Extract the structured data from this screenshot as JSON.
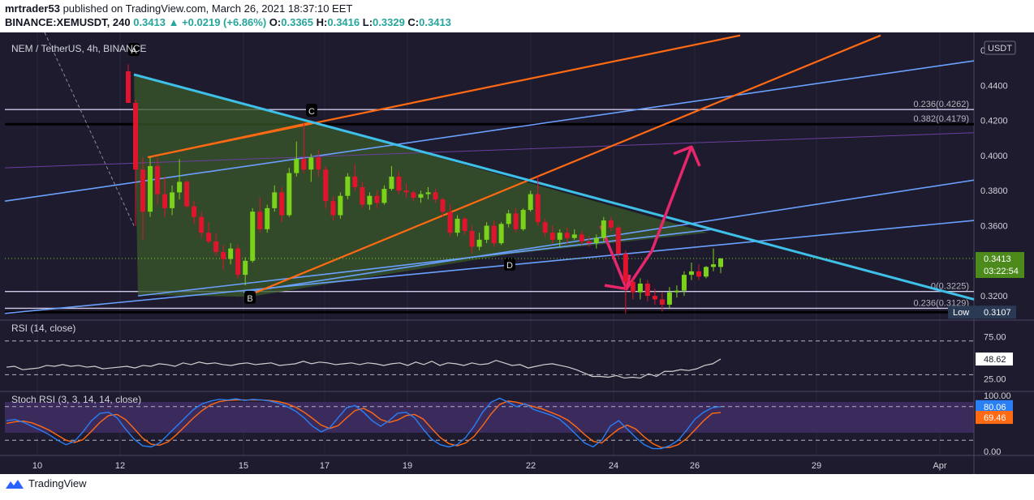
{
  "header": {
    "author": "mrtrader53",
    "published_text": "published on TradingView.com, March 26, 2021 18:37:10 EET",
    "symbol": "BINANCE:XEMUSDT, 240",
    "last": "0.3413",
    "change": "▲ +0.0219 (+6.86%)",
    "o_label": "O:",
    "o": "0.3365",
    "h_label": "H:",
    "h": "0.3416",
    "l_label": "L:",
    "l": "0.3329",
    "c_label": "C:",
    "c": "0.3413"
  },
  "footer": {
    "brand": "TradingView"
  },
  "colors": {
    "background": "#1e1b2e",
    "up": "#7bd21a",
    "down": "#e0152d",
    "trendline": "#3fc0e8",
    "channel": "#6aa0ff",
    "orange": "#ff6a13",
    "arrow": "#e8266a",
    "triangle_fill": "#3a5a2a",
    "rsi": "#d0d0d0",
    "stoch_k": "#2a7ff5",
    "stoch_d": "#ff6a13"
  },
  "icons": {
    "logo": "tradingview-logo-icon"
  },
  "chart_data": {
    "type": "candlestick",
    "title": "NEM / TetherUS, 4h, BINANCE",
    "currency_badge": "USDT",
    "y_ticks": [
      "0.4400",
      "0.4200",
      "0.4000",
      "0.3800",
      "0.3600",
      "0.3200"
    ],
    "y_top_partial": "0.4600",
    "ylim": [
      0.3085,
      0.4665
    ],
    "x_ticks": [
      "10",
      "12",
      "15",
      "17",
      "19",
      "22",
      "24",
      "26",
      "29",
      "Apr"
    ],
    "price_label": "0.3413",
    "countdown": "03:22:54",
    "low_label": "Low",
    "low_value": "0.3107",
    "fib_labels": [
      "0.236(0.4262)",
      "0.382(0.4179)",
      "0(0.3225)",
      "0.236(0.3129)"
    ],
    "fib_levels": [
      0.4262,
      0.4179,
      0.3225,
      0.3129,
      0.3107
    ],
    "pattern_points": [
      "A",
      "B",
      "C",
      "D"
    ],
    "candles": [
      [
        0.448,
        0.452,
        0.43,
        0.43
      ],
      [
        0.43,
        0.432,
        0.36,
        0.392
      ],
      [
        0.392,
        0.399,
        0.352,
        0.368
      ],
      [
        0.368,
        0.399,
        0.365,
        0.394
      ],
      [
        0.394,
        0.399,
        0.372,
        0.378
      ],
      [
        0.378,
        0.388,
        0.365,
        0.37
      ],
      [
        0.37,
        0.383,
        0.366,
        0.379
      ],
      [
        0.379,
        0.398,
        0.375,
        0.385
      ],
      [
        0.385,
        0.386,
        0.37,
        0.371
      ],
      [
        0.371,
        0.374,
        0.361,
        0.365
      ],
      [
        0.365,
        0.368,
        0.353,
        0.356
      ],
      [
        0.356,
        0.362,
        0.35,
        0.351
      ],
      [
        0.351,
        0.356,
        0.343,
        0.345
      ],
      [
        0.345,
        0.349,
        0.335,
        0.341
      ],
      [
        0.341,
        0.35,
        0.338,
        0.347
      ],
      [
        0.347,
        0.349,
        0.33,
        0.332
      ],
      [
        0.332,
        0.342,
        0.326,
        0.34
      ],
      [
        0.34,
        0.37,
        0.339,
        0.368
      ],
      [
        0.368,
        0.376,
        0.356,
        0.358
      ],
      [
        0.358,
        0.372,
        0.356,
        0.37
      ],
      [
        0.37,
        0.383,
        0.368,
        0.379
      ],
      [
        0.379,
        0.382,
        0.362,
        0.366
      ],
      [
        0.366,
        0.393,
        0.365,
        0.39
      ],
      [
        0.39,
        0.408,
        0.388,
        0.398
      ],
      [
        0.398,
        0.419,
        0.39,
        0.392
      ],
      [
        0.392,
        0.401,
        0.385,
        0.399
      ],
      [
        0.399,
        0.403,
        0.388,
        0.392
      ],
      [
        0.392,
        0.394,
        0.37,
        0.374
      ],
      [
        0.374,
        0.377,
        0.363,
        0.366
      ],
      [
        0.366,
        0.379,
        0.364,
        0.377
      ],
      [
        0.377,
        0.39,
        0.375,
        0.388
      ],
      [
        0.388,
        0.395,
        0.38,
        0.382
      ],
      [
        0.382,
        0.385,
        0.37,
        0.372
      ],
      [
        0.372,
        0.379,
        0.369,
        0.377
      ],
      [
        0.377,
        0.38,
        0.37,
        0.373
      ],
      [
        0.373,
        0.383,
        0.372,
        0.381
      ],
      [
        0.381,
        0.394,
        0.38,
        0.388
      ],
      [
        0.388,
        0.391,
        0.378,
        0.38
      ],
      [
        0.38,
        0.384,
        0.376,
        0.379
      ],
      [
        0.379,
        0.38,
        0.374,
        0.376
      ],
      [
        0.376,
        0.38,
        0.373,
        0.378
      ],
      [
        0.378,
        0.382,
        0.375,
        0.379
      ],
      [
        0.379,
        0.381,
        0.373,
        0.375
      ],
      [
        0.375,
        0.376,
        0.365,
        0.368
      ],
      [
        0.368,
        0.372,
        0.354,
        0.356
      ],
      [
        0.356,
        0.366,
        0.354,
        0.364
      ],
      [
        0.364,
        0.365,
        0.355,
        0.357
      ],
      [
        0.357,
        0.36,
        0.344,
        0.348
      ],
      [
        0.348,
        0.356,
        0.346,
        0.352
      ],
      [
        0.352,
        0.362,
        0.35,
        0.36
      ],
      [
        0.36,
        0.363,
        0.348,
        0.35
      ],
      [
        0.35,
        0.362,
        0.349,
        0.361
      ],
      [
        0.361,
        0.369,
        0.359,
        0.367
      ],
      [
        0.367,
        0.37,
        0.356,
        0.358
      ],
      [
        0.358,
        0.37,
        0.357,
        0.369
      ],
      [
        0.369,
        0.38,
        0.368,
        0.378
      ],
      [
        0.378,
        0.388,
        0.36,
        0.362
      ],
      [
        0.362,
        0.364,
        0.354,
        0.356
      ],
      [
        0.356,
        0.36,
        0.35,
        0.352
      ],
      [
        0.352,
        0.358,
        0.348,
        0.356
      ],
      [
        0.356,
        0.359,
        0.35,
        0.353
      ],
      [
        0.353,
        0.358,
        0.352,
        0.355
      ],
      [
        0.355,
        0.357,
        0.349,
        0.351
      ],
      [
        0.351,
        0.354,
        0.348,
        0.35
      ],
      [
        0.35,
        0.355,
        0.347,
        0.353
      ],
      [
        0.353,
        0.365,
        0.351,
        0.363
      ],
      [
        0.363,
        0.365,
        0.357,
        0.359
      ],
      [
        0.359,
        0.36,
        0.342,
        0.344
      ],
      [
        0.344,
        0.346,
        0.31,
        0.328
      ],
      [
        0.328,
        0.33,
        0.318,
        0.322
      ],
      [
        0.322,
        0.33,
        0.318,
        0.327
      ],
      [
        0.327,
        0.329,
        0.317,
        0.32
      ],
      [
        0.32,
        0.324,
        0.315,
        0.318
      ],
      [
        0.318,
        0.322,
        0.311,
        0.315
      ],
      [
        0.315,
        0.325,
        0.313,
        0.322
      ],
      [
        0.322,
        0.326,
        0.319,
        0.323
      ],
      [
        0.323,
        0.334,
        0.32,
        0.332
      ],
      [
        0.332,
        0.339,
        0.329,
        0.334
      ],
      [
        0.334,
        0.338,
        0.329,
        0.331
      ],
      [
        0.331,
        0.337,
        0.33,
        0.3365
      ],
      [
        0.3365,
        0.347,
        0.334,
        0.338
      ],
      [
        0.3365,
        0.3416,
        0.3329,
        0.3413
      ]
    ],
    "rsi": {
      "label": "RSI (14, close)",
      "value_label": "48.62",
      "ticks": [
        "75.00",
        "25.00"
      ],
      "values": [
        39,
        40,
        36,
        37,
        38,
        41,
        40,
        42,
        40,
        41,
        39,
        40,
        37,
        38,
        39,
        40,
        38,
        41,
        40,
        43,
        42,
        40,
        44,
        42,
        45,
        43,
        44,
        42,
        41,
        43,
        44,
        42,
        43,
        44,
        41,
        42,
        43,
        46,
        43,
        45,
        44,
        42,
        43,
        44,
        42,
        44,
        43,
        41,
        43,
        44,
        41,
        45,
        42,
        46,
        41,
        44,
        43,
        41,
        44,
        42,
        43,
        47,
        44,
        41,
        42,
        38,
        40,
        42,
        43,
        41,
        39,
        36,
        32,
        28,
        28,
        27,
        29,
        26,
        27,
        26,
        31,
        28,
        34,
        34,
        36,
        35,
        37,
        41,
        43,
        48.62
      ]
    },
    "stoch": {
      "label": "Stoch RSI (3, 3, 14, 14, close)",
      "k_value": "80.06",
      "d_value": "69.46",
      "ticks": [
        "100.00",
        "0.00"
      ],
      "k": [
        55,
        57,
        52,
        45,
        38,
        30,
        20,
        12,
        18,
        35,
        55,
        68,
        70,
        60,
        40,
        22,
        10,
        8,
        15,
        30,
        45,
        60,
        75,
        85,
        90,
        93,
        92,
        94,
        91,
        93,
        92,
        90,
        86,
        80,
        72,
        60,
        45,
        35,
        42,
        60,
        78,
        82,
        70,
        55,
        45,
        55,
        68,
        70,
        60,
        40,
        22,
        12,
        8,
        12,
        25,
        45,
        70,
        88,
        95,
        88,
        80,
        85,
        75,
        70,
        65,
        58,
        45,
        30,
        15,
        8,
        20,
        45,
        55,
        40,
        25,
        12,
        5,
        5,
        10,
        20,
        38,
        58,
        70,
        78,
        80.06
      ],
      "d": [
        50,
        53,
        54,
        51,
        45,
        38,
        29,
        20,
        16,
        21,
        36,
        52,
        64,
        66,
        57,
        41,
        24,
        13,
        11,
        17,
        30,
        45,
        60,
        73,
        83,
        89,
        91,
        92,
        92,
        92,
        92,
        91,
        89,
        85,
        79,
        70,
        59,
        47,
        41,
        46,
        60,
        73,
        77,
        69,
        57,
        52,
        56,
        64,
        66,
        58,
        41,
        25,
        14,
        10,
        15,
        27,
        46,
        67,
        84,
        90,
        88,
        84,
        80,
        76,
        70,
        64,
        56,
        44,
        30,
        18,
        15,
        28,
        40,
        47,
        40,
        26,
        14,
        7,
        7,
        12,
        23,
        39,
        55,
        68,
        69.46
      ]
    }
  }
}
